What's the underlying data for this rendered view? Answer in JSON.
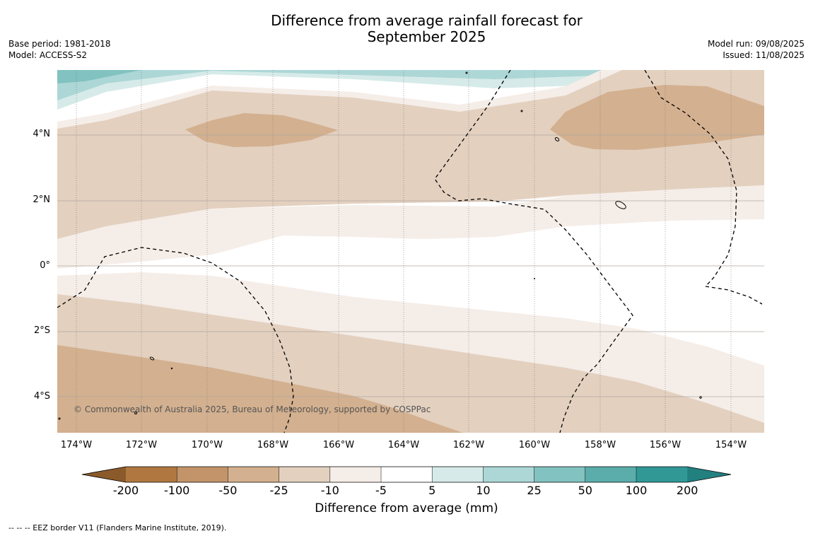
{
  "title": "Difference from average rainfall forecast for\nSeptember 2025",
  "meta_left": {
    "base_period": "Base period: 1981-2018",
    "model": "Model: ACCESS-S2"
  },
  "meta_right": {
    "model_run": "Model run: 09/08/2025",
    "issued": "Issued: 11/08/2025"
  },
  "y_axis_labels": [
    "4°N",
    "2°N",
    "0°",
    "2°S",
    "4°S"
  ],
  "x_axis_labels": [
    "174°W",
    "172°W",
    "170°W",
    "168°W",
    "166°W",
    "164°W",
    "162°W",
    "160°W",
    "158°W",
    "156°W",
    "154°W"
  ],
  "copyright": "© Commonwealth of Australia 2025, Bureau of Meteorology, supported by COSPPac",
  "colorbar": {
    "title": "Difference from average (mm)",
    "tick_labels": [
      "-200",
      "-100",
      "-50",
      "-25",
      "-10",
      "-5",
      "5",
      "10",
      "25",
      "50",
      "100",
      "200"
    ],
    "colors": [
      "#8b5a2b",
      "#b07840",
      "#c3946a",
      "#d3b08f",
      "#e3d0bf",
      "#f5ede8",
      "#ffffff",
      "#d6ebe9",
      "#acd7d6",
      "#82c2c0",
      "#5aadab",
      "#319896",
      "#22807f"
    ]
  },
  "eez_note": "--  --  -- EEZ border V11 (Flanders Marine Institute, 2019)."
}
